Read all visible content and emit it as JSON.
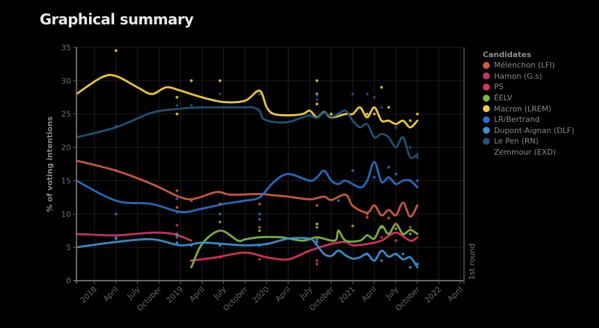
{
  "page": {
    "title": "Graphical summary"
  },
  "legend": {
    "title": "Candidates",
    "items": [
      {
        "label": "Mélenchon (LFI)",
        "color": "#cf5b3c"
      },
      {
        "label": "Hamon (G.s)",
        "color": "#c23564"
      },
      {
        "label": "PS",
        "color": "#d6325a"
      },
      {
        "label": "ÉELV",
        "color": "#7db343"
      },
      {
        "label": "Macron (LREM)",
        "color": "#f2cf3a"
      },
      {
        "label": "LR/Bertrand",
        "color": "#2a6dc4"
      },
      {
        "label": "Dupont-Aignan (DLF)",
        "color": "#3a8fd1"
      },
      {
        "label": "Le Pen (RN)",
        "color": "#1f5378"
      },
      {
        "label": "Zemmour (EXD)",
        "color": null
      }
    ]
  },
  "chart_data": {
    "type": "line",
    "title": "Graphical summary",
    "xlabel": "",
    "ylabel": "% of voting intentions",
    "ylim": [
      0,
      35
    ],
    "yticks": [
      0,
      5,
      10,
      15,
      20,
      25,
      30,
      35
    ],
    "xlim_months_from_2018_01": [
      -2.5,
      51.5
    ],
    "xticks": [
      {
        "m": 0,
        "label": "2018"
      },
      {
        "m": 3,
        "label": "April"
      },
      {
        "m": 6,
        "label": "July"
      },
      {
        "m": 9,
        "label": "October"
      },
      {
        "m": 12,
        "label": "2019"
      },
      {
        "m": 15,
        "label": "April"
      },
      {
        "m": 18,
        "label": "July"
      },
      {
        "m": 21,
        "label": "October"
      },
      {
        "m": 24,
        "label": "2020"
      },
      {
        "m": 27,
        "label": "April"
      },
      {
        "m": 30,
        "label": "July"
      },
      {
        "m": 33,
        "label": "October"
      },
      {
        "m": 36,
        "label": "2021"
      },
      {
        "m": 39,
        "label": "April"
      },
      {
        "m": 42,
        "label": "July"
      },
      {
        "m": 45,
        "label": "October"
      },
      {
        "m": 48,
        "label": "2022"
      },
      {
        "m": 51,
        "label": "April"
      }
    ],
    "grid": true,
    "annotation": {
      "label": "1st round",
      "m": 51.2
    },
    "legend_position": "right",
    "x_unit": "months since January 2018",
    "series": [
      {
        "name": "Mélenchon (LFI)",
        "color": "#cf5b3c",
        "x": [
          -2.5,
          3,
          8,
          12,
          14,
          17,
          19,
          23,
          25,
          27,
          30,
          32,
          33,
          35,
          36,
          38,
          39,
          40,
          41,
          42,
          43,
          44,
          45
        ],
        "y": [
          18,
          16.5,
          14.5,
          12.5,
          12.3,
          13.3,
          12.9,
          13.0,
          12.8,
          12.6,
          12.2,
          12.6,
          12.1,
          12.9,
          11.2,
          10.2,
          11.3,
          9.8,
          10.6,
          9.8,
          11.7,
          9.6,
          11.3
        ],
        "points": [
          [
            3,
            16.5
          ],
          [
            11.5,
            13.5
          ],
          [
            11.5,
            11
          ],
          [
            11.5,
            7
          ],
          [
            13.5,
            12
          ],
          [
            17.5,
            11.5
          ],
          [
            17.5,
            7.5
          ],
          [
            23,
            11.5
          ],
          [
            23,
            8
          ],
          [
            31,
            11.3
          ],
          [
            31,
            8.5
          ],
          [
            38,
            9.5
          ],
          [
            38,
            10
          ],
          [
            40,
            8
          ],
          [
            41,
            9.4
          ],
          [
            42,
            8.5
          ],
          [
            44,
            8
          ]
        ]
      },
      {
        "name": "Hamon (G.s)",
        "color": "#c23564",
        "x": [
          -2.5,
          3,
          8,
          11,
          13.5
        ],
        "y": [
          7,
          6.8,
          7.2,
          7.0,
          6.0
        ],
        "points": [
          [
            3,
            6.5
          ],
          [
            11.5,
            8.3
          ],
          [
            11.5,
            6.5
          ]
        ]
      },
      {
        "name": "PS",
        "color": "#d6325a",
        "x": [
          13.5,
          17,
          21,
          24,
          27,
          30,
          33,
          35,
          36,
          38,
          40,
          42,
          44,
          45
        ],
        "y": [
          3,
          3.5,
          4.2,
          3.5,
          3.2,
          4.5,
          5.5,
          5.8,
          5.3,
          5.5,
          6,
          7.2,
          6,
          6.5
        ],
        "points": [
          [
            13.5,
            3
          ],
          [
            17.5,
            3.5
          ],
          [
            23,
            3.2
          ],
          [
            31,
            3
          ],
          [
            31,
            2.5
          ],
          [
            40,
            6.5
          ],
          [
            42,
            6
          ]
        ]
      },
      {
        "name": "ÉELV",
        "color": "#7db343",
        "x": [
          13.5,
          15,
          17.5,
          20,
          21,
          23,
          26,
          29,
          31,
          33.5,
          34,
          35,
          37,
          38,
          39,
          40,
          41,
          42,
          43,
          44,
          45
        ],
        "y": [
          2,
          5.5,
          7.5,
          6,
          6.2,
          6.5,
          6.5,
          6,
          6.5,
          6,
          7.5,
          6,
          6,
          6.8,
          6.3,
          8.2,
          7,
          8.5,
          7,
          7.6,
          7
        ],
        "points": [
          [
            17.5,
            8.8
          ],
          [
            23,
            7.5
          ],
          [
            31,
            8.5
          ],
          [
            31,
            8
          ],
          [
            36,
            8.2
          ],
          [
            40,
            8
          ],
          [
            42,
            7.8
          ],
          [
            44,
            7
          ]
        ]
      },
      {
        "name": "Macron (LREM)",
        "color": "#f2cf3a",
        "x": [
          -2.5,
          1,
          3,
          6,
          8,
          10,
          12,
          15,
          18,
          21,
          23,
          24,
          25,
          27,
          29,
          30,
          31,
          32,
          33,
          35,
          36,
          37,
          38,
          39,
          40,
          41,
          42,
          43,
          44,
          45
        ],
        "y": [
          28,
          30.5,
          30.7,
          29,
          28,
          29,
          28.5,
          27.5,
          26.8,
          27,
          28.5,
          26,
          25,
          24.8,
          25,
          25.5,
          24.5,
          25.3,
          24.5,
          25,
          25,
          26,
          24.5,
          26,
          24,
          24,
          23.5,
          24,
          23,
          24
        ],
        "points": [
          [
            3,
            34.5
          ],
          [
            11.5,
            27.5
          ],
          [
            11.5,
            25
          ],
          [
            13.5,
            30
          ],
          [
            17.5,
            30
          ],
          [
            31,
            30
          ],
          [
            31,
            28
          ],
          [
            31,
            26.5
          ],
          [
            33,
            25
          ],
          [
            34,
            25
          ],
          [
            38,
            25
          ],
          [
            39,
            25
          ],
          [
            40,
            29
          ],
          [
            41,
            26
          ],
          [
            44,
            24
          ],
          [
            45,
            25
          ]
        ]
      },
      {
        "name": "LR/Bertrand",
        "color": "#2a6dc4",
        "x": [
          -2.5,
          3,
          8,
          12,
          15,
          18,
          21,
          23,
          25,
          27,
          30,
          31,
          32,
          33,
          34,
          35,
          37,
          38,
          39,
          40,
          41,
          42,
          43,
          44,
          45
        ],
        "y": [
          15,
          12,
          11.5,
          10.3,
          10.8,
          11.5,
          12,
          12.5,
          14.8,
          16,
          15,
          15.5,
          16.5,
          15,
          14.5,
          15,
          14,
          15,
          17.8,
          14.8,
          15.5,
          14.5,
          15,
          15,
          14
        ],
        "points": [
          [
            3,
            10
          ],
          [
            11.5,
            12.3
          ],
          [
            11.5,
            10.3
          ],
          [
            17.5,
            10
          ],
          [
            23,
            10
          ],
          [
            23,
            9.2
          ],
          [
            34,
            12
          ],
          [
            36,
            16.5
          ],
          [
            39,
            15.5
          ],
          [
            41,
            17
          ],
          [
            42,
            16
          ],
          [
            44,
            15
          ],
          [
            45,
            15
          ]
        ]
      },
      {
        "name": "Dupont-Aignan (DLF)",
        "color": "#3a8fd1",
        "x": [
          -2.5,
          3,
          8,
          12,
          15,
          18,
          21,
          24,
          27,
          30,
          31,
          32,
          33,
          34,
          35,
          36,
          37,
          38,
          39,
          40,
          41,
          42,
          43,
          44,
          45
        ],
        "y": [
          5,
          5.8,
          6.2,
          5.3,
          5.7,
          5.5,
          5.3,
          5.5,
          6.3,
          6.3,
          5.3,
          4,
          3.7,
          4.5,
          3.8,
          3.3,
          3.5,
          4,
          3,
          4.5,
          3.6,
          4,
          3.2,
          3.5,
          2
        ],
        "points": [
          [
            3,
            6.3
          ],
          [
            11.5,
            6.8
          ],
          [
            11.5,
            5.7
          ],
          [
            13.5,
            5.3
          ],
          [
            17.5,
            5.3
          ],
          [
            23,
            5.3
          ],
          [
            31,
            6.2
          ],
          [
            31,
            5.8
          ],
          [
            38,
            4
          ],
          [
            40,
            3
          ],
          [
            42,
            4
          ],
          [
            43,
            4
          ],
          [
            44,
            2
          ],
          [
            45,
            2.5
          ]
        ]
      },
      {
        "name": "Le Pen (RN)",
        "color": "#1f5378",
        "x": [
          -2.5,
          3,
          8,
          12,
          15,
          18,
          21,
          22,
          23,
          23.5,
          25,
          27,
          29,
          30,
          31,
          32,
          33,
          34,
          35,
          36,
          37,
          38,
          39,
          40,
          41,
          42,
          43,
          44,
          45
        ],
        "y": [
          21.5,
          23,
          25.2,
          25.8,
          26,
          26,
          26,
          26,
          25.5,
          24.3,
          23.8,
          23.8,
          24.5,
          24.8,
          24.4,
          25.2,
          24.6,
          25,
          25.5,
          24,
          23,
          23.5,
          21.5,
          22,
          21.5,
          20,
          21.5,
          18.5,
          19
        ],
        "points": [
          [
            3,
            23.2
          ],
          [
            11.5,
            26.3
          ],
          [
            13.5,
            26.3
          ],
          [
            17.5,
            28
          ],
          [
            23,
            28
          ],
          [
            31,
            27.8
          ],
          [
            31,
            27.2
          ],
          [
            34,
            25
          ],
          [
            36,
            28
          ],
          [
            38,
            28
          ],
          [
            39,
            27.5
          ],
          [
            40,
            26
          ],
          [
            42,
            23
          ],
          [
            44,
            20
          ],
          [
            45,
            18.5
          ]
        ]
      },
      {
        "name": "Zemmour (EXD)",
        "color": "#555555",
        "x": [],
        "y": [],
        "points": []
      }
    ]
  }
}
